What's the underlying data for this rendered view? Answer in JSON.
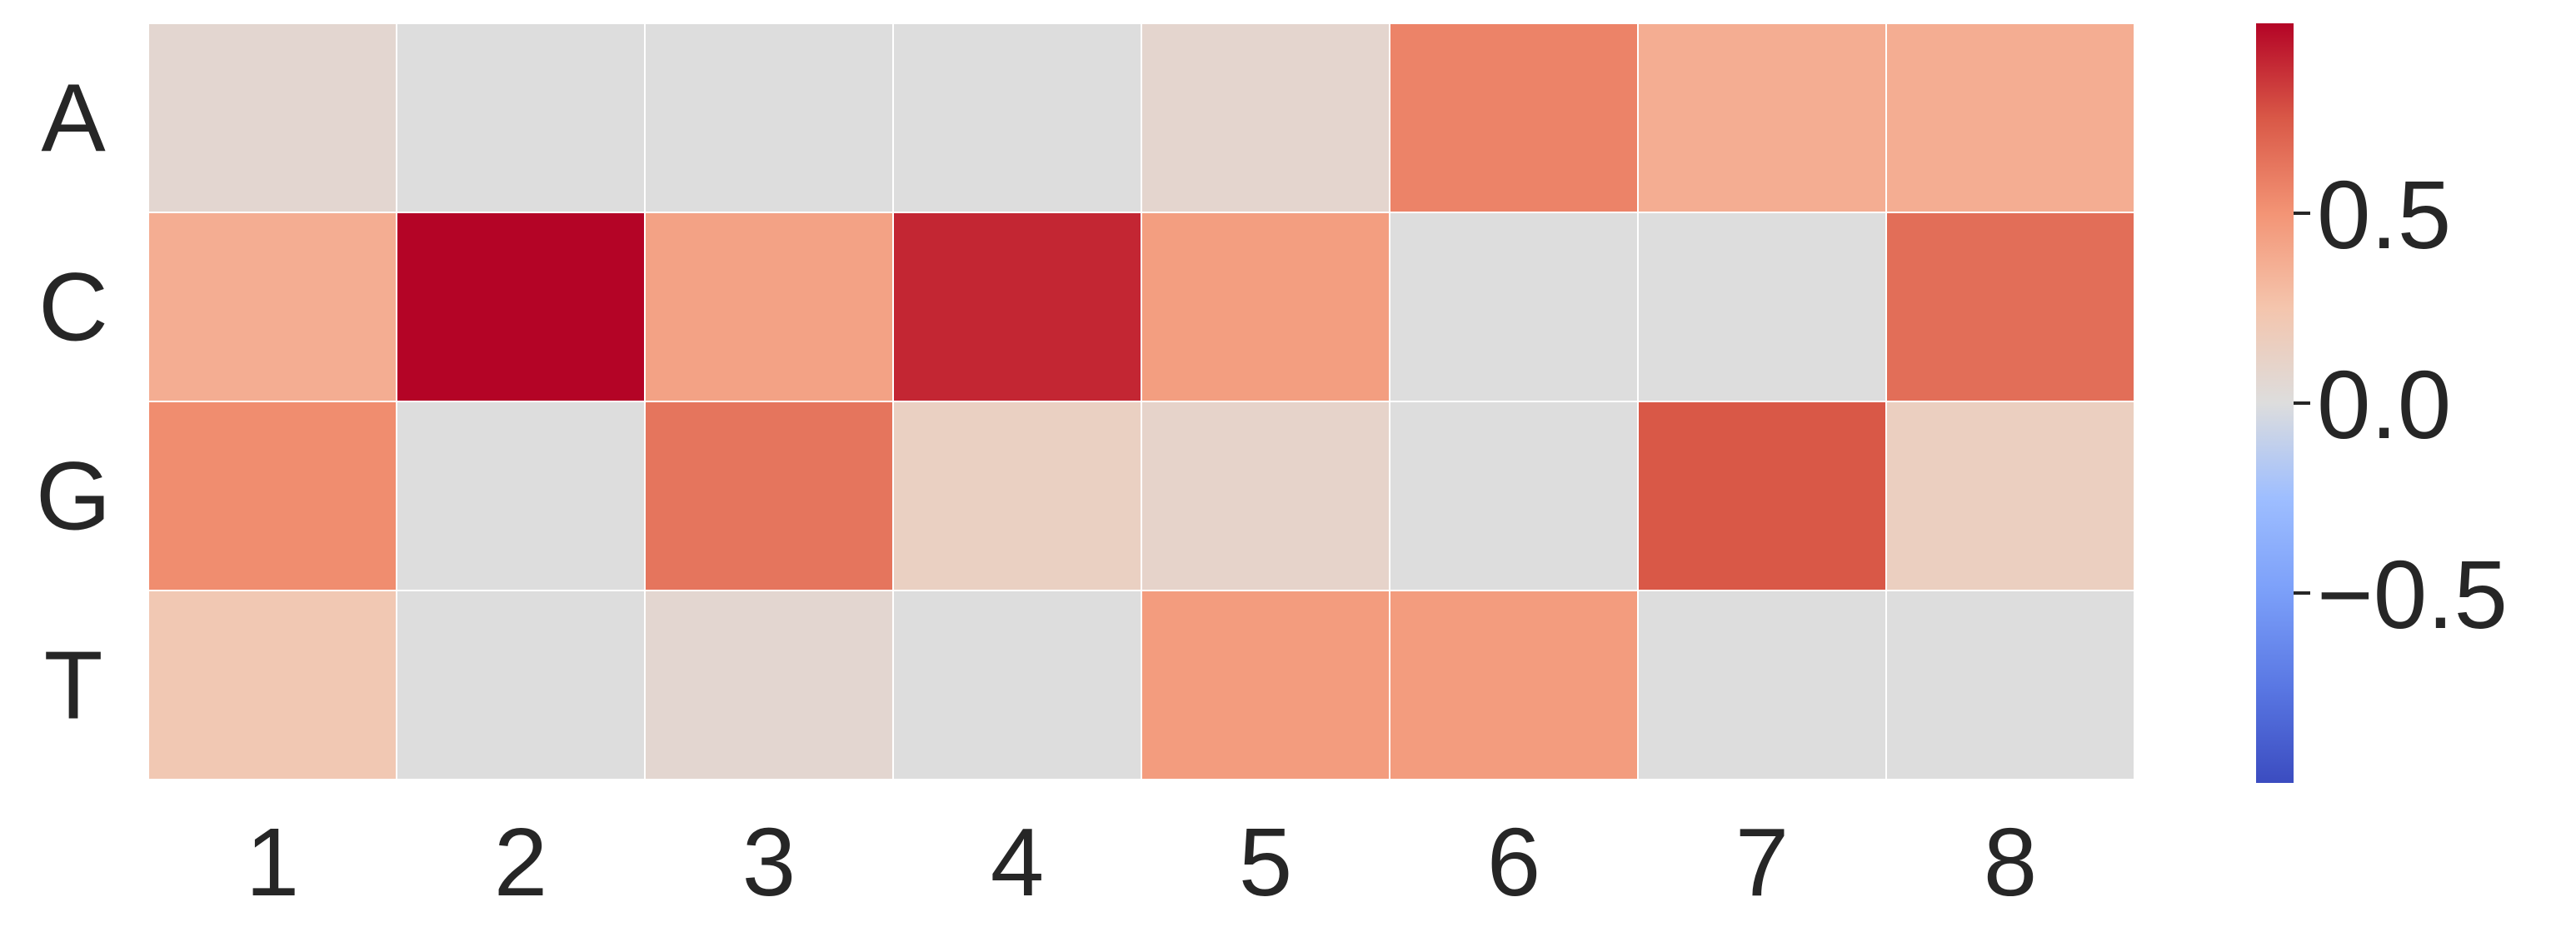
{
  "chart_data": {
    "type": "heatmap",
    "rows": [
      "A",
      "C",
      "G",
      "T"
    ],
    "columns": [
      "1",
      "2",
      "3",
      "4",
      "5",
      "6",
      "7",
      "8"
    ],
    "values": [
      [
        0.07,
        0.0,
        0.0,
        0.0,
        0.08,
        0.57,
        0.37,
        0.37
      ],
      [
        0.37,
        1.0,
        0.43,
        0.9,
        0.45,
        0.0,
        0.0,
        0.66
      ],
      [
        0.53,
        0.0,
        0.63,
        0.14,
        0.1,
        0.0,
        0.75,
        0.15
      ],
      [
        0.22,
        0.0,
        0.07,
        0.0,
        0.46,
        0.46,
        0.0,
        0.0
      ]
    ],
    "colormap": "coolwarm",
    "vmin": -1.0,
    "vmax": 1.0,
    "colorbar_ticks": [
      0.5,
      0.0,
      -0.5
    ],
    "colorbar_tick_labels": [
      "0.5",
      "0.0",
      "−0.5"
    ],
    "gridline_color": "#ffffff"
  }
}
